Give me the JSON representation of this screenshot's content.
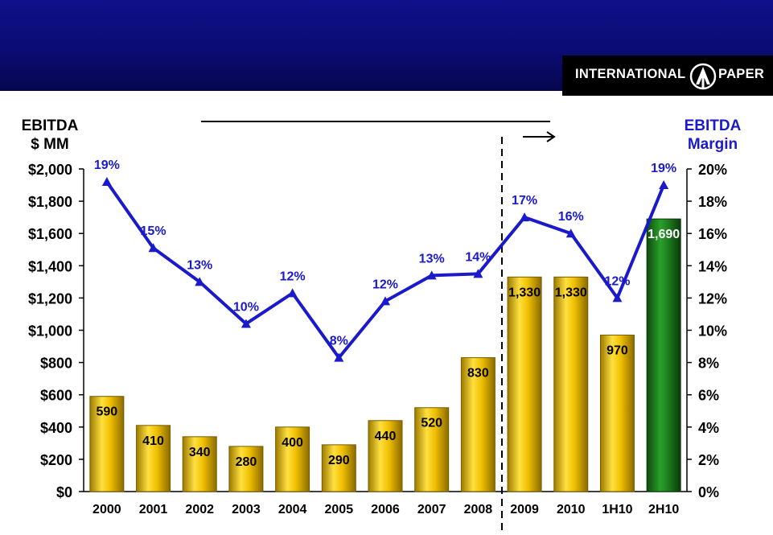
{
  "header": {
    "logo_text_left": "INTERNATIONAL",
    "logo_text_right": "PAPER"
  },
  "axes": {
    "left_title_line1": "EBITDA",
    "left_title_line2": "$ MM",
    "right_title_line1": "EBITDA",
    "right_title_line2": "Margin"
  },
  "colors": {
    "banner": "#0b0b70",
    "bar_gold": "#e8b800",
    "bar_green": "#1e7a1e",
    "line_blue": "#1a1acc",
    "axis_label_blue": "#1a1acc"
  },
  "chart_data": {
    "type": "bar",
    "categories": [
      "2000",
      "2001",
      "2002",
      "2003",
      "2004",
      "2005",
      "2006",
      "2007",
      "2008",
      "2009",
      "2010",
      "1H10",
      "2H10"
    ],
    "series": [
      {
        "values": [
          590,
          410,
          340,
          280,
          400,
          290,
          440,
          520,
          830,
          1330,
          1330,
          970,
          1690
        ],
        "labels": [
          "590",
          "410",
          "340",
          "280",
          "400",
          "290",
          "440",
          "520",
          "830",
          "1,330",
          "1,330",
          "970",
          "1,690"
        ],
        "axis": "left",
        "kind": "bar"
      },
      {
        "values": [
          19.2,
          15.1,
          13.0,
          10.4,
          12.3,
          8.3,
          11.8,
          13.4,
          13.5,
          17.0,
          16.0,
          12.0,
          19.0
        ],
        "labels": [
          "19%",
          "15%",
          "13%",
          "10%",
          "12%",
          "8%",
          "12%",
          "13%",
          "14%",
          "17%",
          "16%",
          "12%",
          "19%"
        ],
        "axis": "right",
        "kind": "line"
      }
    ],
    "ylim": [
      0,
      2000
    ],
    "y2lim": [
      0,
      20
    ],
    "yticks": [
      "$0",
      "$200",
      "$400",
      "$600",
      "$800",
      "$1,000",
      "$1,200",
      "$1,400",
      "$1,600",
      "$1,800",
      "$2,000"
    ],
    "y2ticks": [
      "0%",
      "2%",
      "4%",
      "6%",
      "8%",
      "10%",
      "12%",
      "14%",
      "16%",
      "18%",
      "20%"
    ],
    "highlight_category": "2H10",
    "divider_after_category": "2008"
  }
}
